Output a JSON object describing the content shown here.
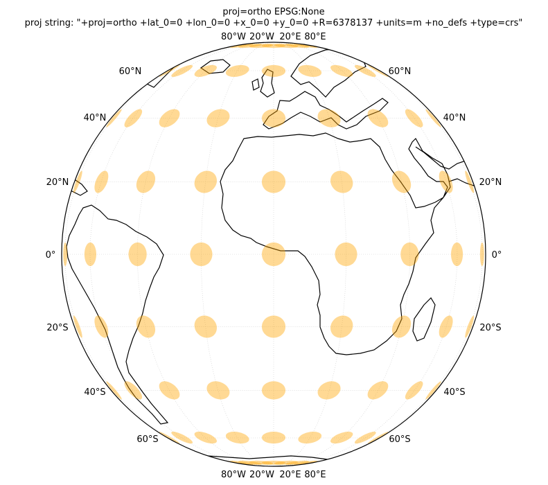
{
  "title_line1": "proj=ortho EPSG:None",
  "title_line2": "proj string: \"+proj=ortho +lat_0=0 +lon_0=0 +x_0=0 +y_0=0 +R=6378137 +units=m +no_defs +type=crs\"",
  "lat_labels": [
    "60°N",
    "40°N",
    "20°N",
    "0°",
    "20°S",
    "40°S",
    "60°S"
  ],
  "lon_labels": [
    "80°W",
    "20°W",
    "20°E",
    "80°E"
  ],
  "projection": {
    "name": "orthographic",
    "lat_0": 0,
    "lon_0": 0
  },
  "graticule": {
    "lat_step": 20,
    "lon_step": 20,
    "style": "dotted",
    "color": "#cccccc"
  },
  "indicatrix": {
    "color": "#ffa500",
    "opacity": 0.42,
    "radius_deg": 3.2,
    "lats": [
      -80,
      -60,
      -40,
      -20,
      0,
      20,
      40,
      60,
      80
    ],
    "lons": [
      -90,
      -80,
      -60,
      -40,
      -20,
      0,
      20,
      40,
      60,
      80,
      90
    ]
  },
  "coastline_color": "#000000"
}
